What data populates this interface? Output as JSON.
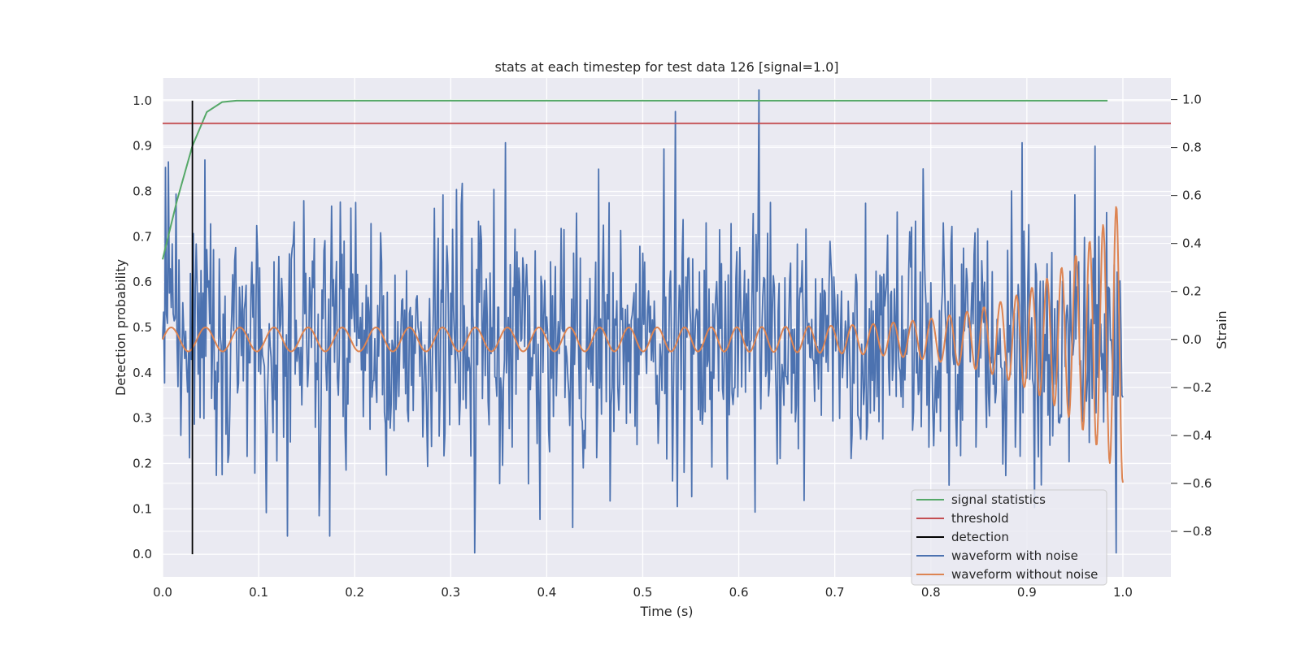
{
  "chart_data": {
    "type": "line",
    "title": "stats at each timestep for test data 126 [signal=1.0]",
    "xlabel": "Time (s)",
    "ylabel": "Detection probability",
    "y2label": "Strain",
    "xlim": [
      0.0,
      1.05
    ],
    "ylim": [
      -0.05,
      1.05
    ],
    "y2lim": [
      -0.99,
      1.09
    ],
    "xticks": [
      "0.0",
      "0.1",
      "0.2",
      "0.3",
      "0.4",
      "0.5",
      "0.6",
      "0.7",
      "0.8",
      "0.9",
      "1.0"
    ],
    "yticks": [
      "0.0",
      "0.1",
      "0.2",
      "0.3",
      "0.4",
      "0.5",
      "0.6",
      "0.7",
      "0.8",
      "0.9",
      "1.0"
    ],
    "y2ticks": [
      "−0.8",
      "−0.6",
      "−0.4",
      "−0.2",
      "0.0",
      "0.2",
      "0.4",
      "0.6",
      "0.8",
      "1.0"
    ],
    "grid": true,
    "legend_position": "lower-right",
    "series": [
      {
        "name": "signal statistics",
        "color": "#55a868",
        "axis": "left",
        "x": [
          0.0,
          0.015,
          0.031,
          0.046,
          0.062,
          0.077,
          0.1,
          0.2,
          0.4,
          0.6,
          0.8,
          0.984
        ],
        "y": [
          0.65,
          0.78,
          0.9,
          0.975,
          0.997,
          1.0,
          1.0,
          1.0,
          1.0,
          1.0,
          1.0,
          1.0
        ]
      },
      {
        "name": "threshold",
        "color": "#c44e52",
        "axis": "left",
        "x": [
          0.0,
          1.05
        ],
        "y": [
          0.95,
          0.95
        ]
      },
      {
        "name": "detection",
        "color": "#000000",
        "axis": "left",
        "x": [
          0.031,
          0.031
        ],
        "y": [
          0.0,
          1.0
        ]
      },
      {
        "name": "waveform with noise",
        "color": "#4c72b0",
        "axis": "right",
        "style": "noise",
        "x_range": [
          0.0,
          1.0
        ],
        "amplitude": 0.28,
        "peaks": [
          {
            "x": 0.006,
            "y": 0.74
          },
          {
            "x": 0.534,
            "y": 0.95
          },
          {
            "x": 0.621,
            "y": 1.04
          },
          {
            "x": 0.325,
            "y": -0.89
          },
          {
            "x": 0.393,
            "y": -0.75
          },
          {
            "x": 0.617,
            "y": -0.72
          },
          {
            "x": 0.993,
            "y": -0.89
          }
        ]
      },
      {
        "name": "waveform without noise",
        "color": "#dd8452",
        "axis": "right",
        "style": "chirp",
        "x_range": [
          0.0,
          1.0
        ],
        "amplitude_start": 0.05,
        "amplitude_end": 0.6,
        "frequency_start": 28,
        "frequency_end": 75
      }
    ]
  }
}
